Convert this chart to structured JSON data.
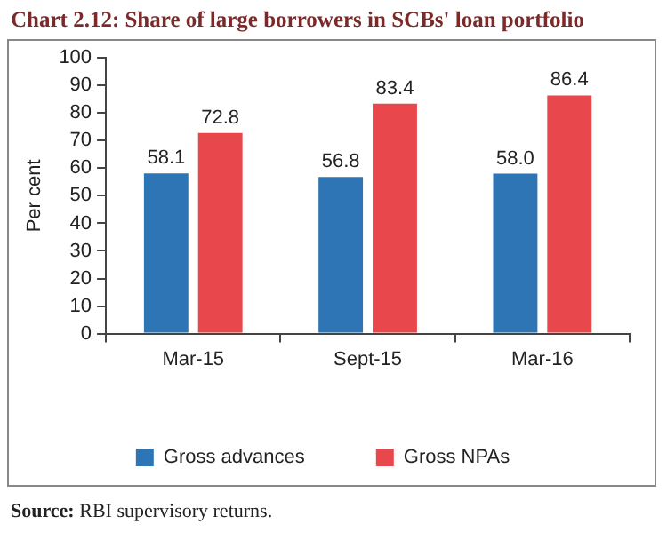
{
  "chart_data": {
    "type": "bar",
    "title": "Chart 2.12: Share of large borrowers in SCBs' loan portfolio",
    "ylabel": "Per cent",
    "categories": [
      "Mar-15",
      "Sept-15",
      "Mar-16"
    ],
    "series": [
      {
        "name": "Gross advances",
        "color": "#2e75b6",
        "values": [
          58.1,
          56.8,
          58.0
        ],
        "value_labels": [
          "58.1",
          "56.8",
          "58.0"
        ]
      },
      {
        "name": "Gross NPAs",
        "color": "#e8474b",
        "values": [
          72.8,
          83.4,
          86.4
        ],
        "value_labels": [
          "72.8",
          "83.4",
          "86.4"
        ]
      }
    ],
    "ylim": [
      0,
      100
    ],
    "yticks": [
      0,
      10,
      20,
      30,
      40,
      50,
      60,
      70,
      80,
      90,
      100
    ],
    "grid": false,
    "legend": "bottom",
    "annotations": [
      "Source: RBI supervisory returns."
    ]
  }
}
